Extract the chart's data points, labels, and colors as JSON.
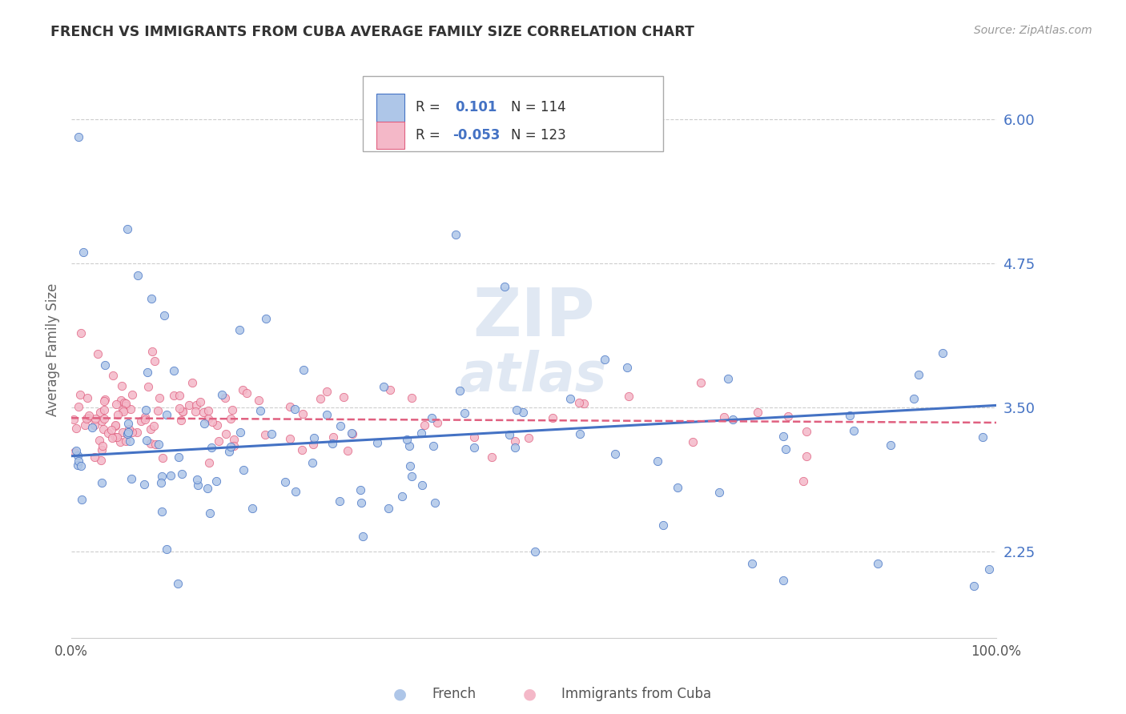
{
  "title": "FRENCH VS IMMIGRANTS FROM CUBA AVERAGE FAMILY SIZE CORRELATION CHART",
  "source": "Source: ZipAtlas.com",
  "ylabel": "Average Family Size",
  "xlim": [
    0,
    100
  ],
  "ylim": [
    1.5,
    6.5
  ],
  "yticks": [
    2.25,
    3.5,
    4.75,
    6.0
  ],
  "background_color": "#ffffff",
  "grid_color": "#c8c8c8",
  "french_fill_color": "#aec6e8",
  "french_edge_color": "#4472c4",
  "cuba_fill_color": "#f4b8c8",
  "cuba_edge_color": "#e06080",
  "french_R": 0.101,
  "french_N": 114,
  "cuba_R": -0.053,
  "cuba_N": 123,
  "french_line_start": 3.08,
  "french_line_end": 3.52,
  "cuba_line_start": 3.41,
  "cuba_line_end": 3.37,
  "ytick_color": "#4472c4",
  "title_color": "#333333",
  "source_color": "#999999",
  "watermark_color": "#ccdaec",
  "legend_text_color": "#333333",
  "legend_R_color": "#4472c4"
}
